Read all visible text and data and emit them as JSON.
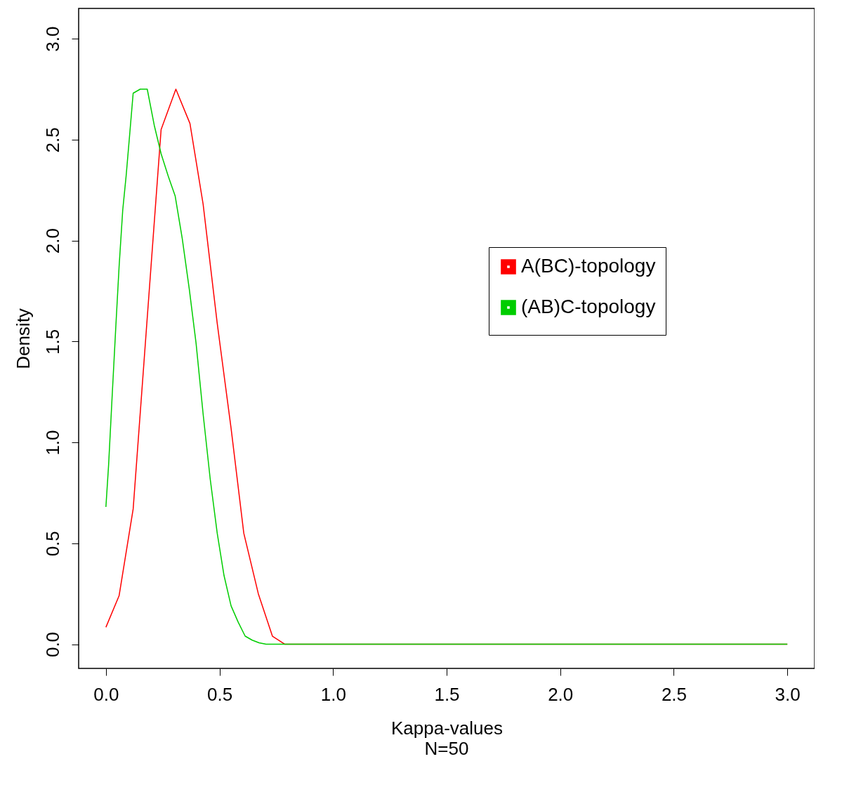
{
  "chart_data": {
    "type": "line",
    "xlabel": "Kappa-values",
    "ylabel": "Density",
    "annotations": [
      "N=50"
    ],
    "xlim": [
      -0.12,
      3.12
    ],
    "ylim": [
      -0.12,
      3.15
    ],
    "xticks": [
      {
        "value": 0,
        "label": "0.0"
      },
      0.5,
      {
        "value": 1,
        "label": "1.0"
      },
      1.5,
      {
        "value": 2,
        "label": "2.0"
      },
      2.5,
      {
        "value": 3,
        "label": "3.0"
      }
    ],
    "yticks": [
      {
        "value": 0,
        "label": "0.0"
      },
      0.5,
      {
        "value": 1,
        "label": "1.0"
      },
      1.5,
      {
        "value": 2,
        "label": "2.0"
      },
      2.5,
      {
        "value": 3,
        "label": "3.0"
      }
    ],
    "grid": false,
    "legend": "right",
    "marker": "none",
    "line_style": "solid",
    "series": [
      {
        "name": "A(BC)-topology",
        "color": "#ff0000",
        "x": [
          0,
          0.058,
          0.12,
          0.243,
          0.308,
          0.37,
          0.428,
          0.49,
          0.551,
          0.607,
          0.671,
          0.733,
          0.788,
          3.0
        ],
        "values": [
          0.084,
          0.24,
          0.67,
          2.55,
          2.75,
          2.58,
          2.18,
          1.59,
          1.07,
          0.55,
          0.25,
          0.04,
          0,
          0
        ]
      },
      {
        "name": "(AB)C-topology",
        "color": "#00cd00",
        "x": [
          0,
          0.012,
          0.028,
          0.043,
          0.058,
          0.074,
          0.089,
          0.105,
          0.12,
          0.151,
          0.182,
          0.213,
          0.243,
          0.274,
          0.305,
          0.336,
          0.367,
          0.397,
          0.428,
          0.459,
          0.49,
          0.52,
          0.551,
          0.582,
          0.613,
          0.644,
          0.674,
          0.705,
          3.0
        ],
        "values": [
          0.68,
          0.89,
          1.24,
          1.56,
          1.87,
          2.15,
          2.32,
          2.53,
          2.73,
          2.75,
          2.75,
          2.57,
          2.43,
          2.32,
          2.22,
          2.01,
          1.76,
          1.49,
          1.14,
          0.82,
          0.55,
          0.34,
          0.19,
          0.11,
          0.04,
          0.02,
          0.007,
          0,
          0
        ]
      }
    ]
  }
}
